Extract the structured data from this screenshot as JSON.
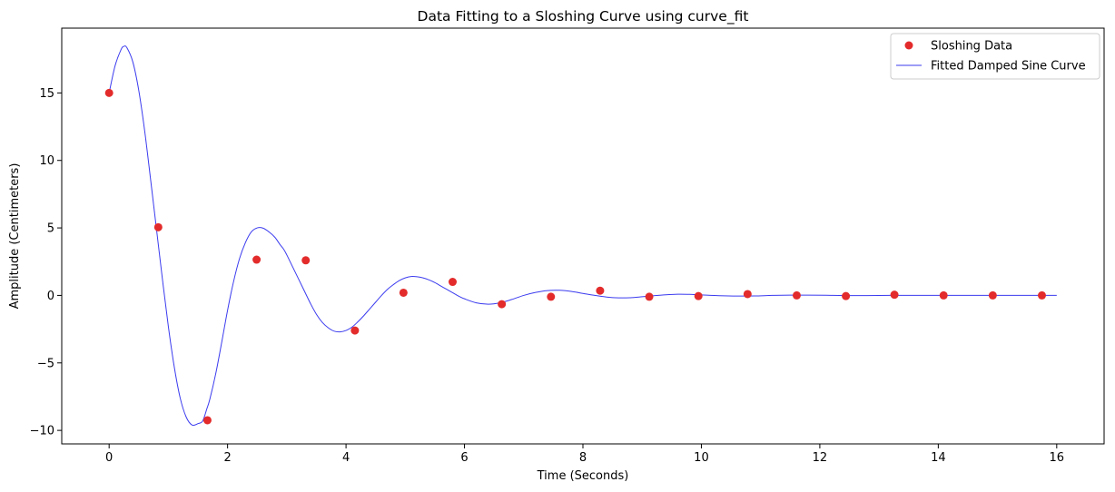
{
  "chart_data": {
    "type": "scatter",
    "title": "Data Fitting to a Sloshing Curve using curve_fit",
    "xlabel": "Time (Seconds)",
    "ylabel": "Amplitude (Centimeters)",
    "xlim": [
      -0.8,
      16.8
    ],
    "ylim": [
      -11.0,
      19.8
    ],
    "xticks": [
      0,
      2,
      4,
      6,
      8,
      10,
      12,
      14,
      16
    ],
    "xtick_labels": [
      "0",
      "2",
      "4",
      "6",
      "8",
      "10",
      "12",
      "14",
      "16"
    ],
    "yticks": [
      -10,
      -5,
      0,
      5,
      10,
      15
    ],
    "ytick_labels": [
      "−10",
      "−5",
      "0",
      "5",
      "10",
      "15"
    ],
    "grid": false,
    "legend_position": "top-right",
    "series": [
      {
        "name": "Sloshing Data",
        "kind": "markers",
        "color": "#e32b2b",
        "x": [
          0.0,
          0.83,
          1.66,
          2.49,
          3.32,
          4.15,
          4.97,
          5.8,
          6.63,
          7.46,
          8.29,
          9.12,
          9.95,
          10.78,
          11.61,
          12.44,
          13.26,
          14.09,
          14.92,
          15.75
        ],
        "y": [
          15.0,
          5.05,
          -9.25,
          2.65,
          2.6,
          -2.6,
          0.2,
          1.0,
          -0.65,
          -0.1,
          0.35,
          -0.1,
          -0.05,
          0.1,
          0.0,
          -0.05,
          0.05,
          0.0,
          0.0,
          0.0
        ]
      },
      {
        "name": "Fitted Damped Sine Curve",
        "kind": "line",
        "color": "#3b3bef",
        "x": [
          0.0,
          0.1,
          0.2,
          0.25,
          0.3,
          0.4,
          0.5,
          0.6,
          0.7,
          0.8,
          0.9,
          1.0,
          1.1,
          1.2,
          1.3,
          1.4,
          1.5,
          1.58,
          1.65,
          1.7,
          1.8,
          1.9,
          2.0,
          2.1,
          2.2,
          2.3,
          2.4,
          2.5,
          2.6,
          2.7,
          2.8,
          2.88,
          2.95,
          3.0,
          3.1,
          3.2,
          3.3,
          3.4,
          3.5,
          3.6,
          3.7,
          3.8,
          3.9,
          4.0,
          4.1,
          4.19,
          4.3,
          4.4,
          4.5,
          4.6,
          4.7,
          4.8,
          4.9,
          5.0,
          5.1,
          5.2,
          5.3,
          5.4,
          5.5,
          5.6,
          5.7,
          5.8,
          5.9,
          6.0,
          6.2,
          6.4,
          6.6,
          6.8,
          7.0,
          7.2,
          7.4,
          7.6,
          7.8,
          8.0,
          8.2,
          8.4,
          8.6,
          8.8,
          9.0,
          9.2,
          9.4,
          9.6,
          9.8,
          10.0,
          10.3,
          10.6,
          10.9,
          11.2,
          11.5,
          11.8,
          12.1,
          12.4,
          12.8,
          13.2,
          13.6,
          14.0,
          14.5,
          15.0,
          15.5,
          16.0
        ],
        "y": [
          15.0,
          17.0,
          18.2,
          18.45,
          18.35,
          17.3,
          15.2,
          12.2,
          8.6,
          4.9,
          1.2,
          -2.3,
          -5.3,
          -7.6,
          -9.0,
          -9.6,
          -9.5,
          -9.3,
          -8.4,
          -7.7,
          -5.8,
          -3.5,
          -1.1,
          1.0,
          2.7,
          3.9,
          4.7,
          5.0,
          4.98,
          4.7,
          4.3,
          3.8,
          3.4,
          3.0,
          2.1,
          1.2,
          0.3,
          -0.6,
          -1.4,
          -2.0,
          -2.4,
          -2.65,
          -2.7,
          -2.6,
          -2.35,
          -2.0,
          -1.5,
          -1.0,
          -0.5,
          0.0,
          0.45,
          0.8,
          1.1,
          1.3,
          1.4,
          1.38,
          1.3,
          1.15,
          0.95,
          0.7,
          0.45,
          0.2,
          -0.05,
          -0.25,
          -0.55,
          -0.65,
          -0.55,
          -0.3,
          0.0,
          0.22,
          0.36,
          0.38,
          0.3,
          0.15,
          0.0,
          -0.12,
          -0.18,
          -0.17,
          -0.1,
          -0.02,
          0.05,
          0.09,
          0.08,
          0.04,
          -0.02,
          -0.05,
          -0.04,
          0.0,
          0.02,
          0.02,
          0.01,
          -0.01,
          -0.01,
          0.0,
          0.0,
          0.0,
          0.0,
          0.0,
          0.0,
          0.0
        ]
      }
    ]
  }
}
